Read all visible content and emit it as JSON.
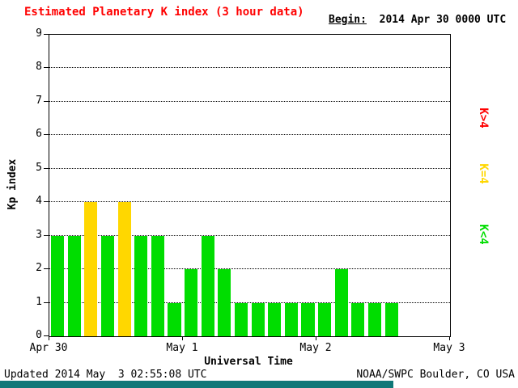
{
  "header": {
    "title": "Estimated Planetary K index (3 hour data)",
    "title_color": "#ff0000",
    "begin_label": "Begin:",
    "begin_value": "2014 Apr 30 0000 UTC"
  },
  "axes": {
    "y_label": "Kp index",
    "x_label": "Universal Time"
  },
  "footer": {
    "updated": "Updated 2014 May  3 02:55:08 UTC",
    "source": "NOAA/SWPC Boulder, CO USA",
    "strip_color": "#0f7878"
  },
  "chart_data": {
    "type": "bar",
    "title": "Estimated Planetary K index (3 hour data)",
    "xlabel": "Universal Time",
    "ylabel": "Kp index",
    "begin": "2014 Apr 30 0000 UTC",
    "interval_hours": 3,
    "slots_per_day": 8,
    "ylim": [
      0,
      9
    ],
    "yticks": [
      0,
      1,
      2,
      3,
      4,
      5,
      6,
      7,
      8,
      9
    ],
    "xticks": [
      "Apr 30",
      "May 1",
      "May 2",
      "May 3"
    ],
    "grid": "horizontal-dotted",
    "legend_position": "right",
    "legend": [
      {
        "label": "K>4",
        "color": "#ff0000"
      },
      {
        "label": "K=4",
        "color": "#ffd700"
      },
      {
        "label": "K<4",
        "color": "#00dd00"
      }
    ],
    "color_rule": {
      "below_4": "#00dd00",
      "equal_4": "#ffd700",
      "above_4": "#ff0000"
    },
    "values": [
      3,
      3,
      4,
      3,
      4,
      3,
      3,
      1,
      2,
      3,
      2,
      1,
      1,
      1,
      1,
      1,
      1,
      2,
      1,
      1,
      1
    ]
  }
}
